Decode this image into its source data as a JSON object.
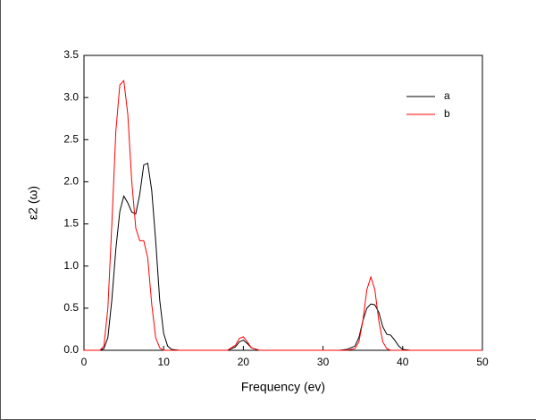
{
  "chart_data": {
    "type": "line",
    "xlabel": "Frequency (ev)",
    "ylabel": "ε2 (ω)",
    "x": [
      0,
      2,
      2.5,
      3,
      3.5,
      4,
      4.5,
      5,
      5.5,
      6,
      6.5,
      7,
      7.5,
      8,
      8.5,
      9,
      9.5,
      10,
      10.5,
      11,
      12,
      18,
      19,
      19.5,
      20,
      20.5,
      21,
      22,
      32,
      33,
      34,
      34.5,
      35,
      35.5,
      36,
      36.5,
      37,
      37.5,
      38,
      38.5,
      39,
      39.5,
      40,
      41,
      50
    ],
    "series": [
      {
        "name": "a",
        "color": "#000000",
        "values": [
          0,
          0,
          0.02,
          0.15,
          0.6,
          1.2,
          1.65,
          1.83,
          1.75,
          1.64,
          1.62,
          1.85,
          2.2,
          2.22,
          1.9,
          1.3,
          0.6,
          0.2,
          0.05,
          0.01,
          0,
          0,
          0.04,
          0.1,
          0.12,
          0.08,
          0.03,
          0,
          0,
          0.01,
          0.05,
          0.15,
          0.35,
          0.5,
          0.55,
          0.54,
          0.45,
          0.28,
          0.19,
          0.18,
          0.12,
          0.05,
          0.01,
          0,
          0
        ]
      },
      {
        "name": "b",
        "color": "#ff0000",
        "values": [
          0,
          0,
          0.05,
          0.5,
          1.5,
          2.6,
          3.15,
          3.2,
          2.8,
          2.0,
          1.45,
          1.3,
          1.3,
          1.1,
          0.55,
          0.15,
          0.03,
          0,
          0,
          0,
          0,
          0,
          0.06,
          0.14,
          0.16,
          0.1,
          0.03,
          0,
          0,
          0,
          0.02,
          0.1,
          0.35,
          0.72,
          0.87,
          0.72,
          0.35,
          0.1,
          0.02,
          0,
          0,
          0,
          0,
          0,
          0
        ]
      }
    ],
    "xlim": [
      0,
      50
    ],
    "xticks": [
      0,
      10,
      20,
      30,
      40,
      50
    ],
    "ylim": [
      0,
      3.5
    ],
    "yticks": [
      {
        "value": 0,
        "label": "0.0"
      },
      0.5,
      {
        "value": 1,
        "label": "1.0"
      },
      1.5,
      {
        "value": 2,
        "label": "2.0"
      },
      2.5,
      {
        "value": 3,
        "label": "3.0"
      },
      3.5
    ],
    "legend": "top-right"
  }
}
